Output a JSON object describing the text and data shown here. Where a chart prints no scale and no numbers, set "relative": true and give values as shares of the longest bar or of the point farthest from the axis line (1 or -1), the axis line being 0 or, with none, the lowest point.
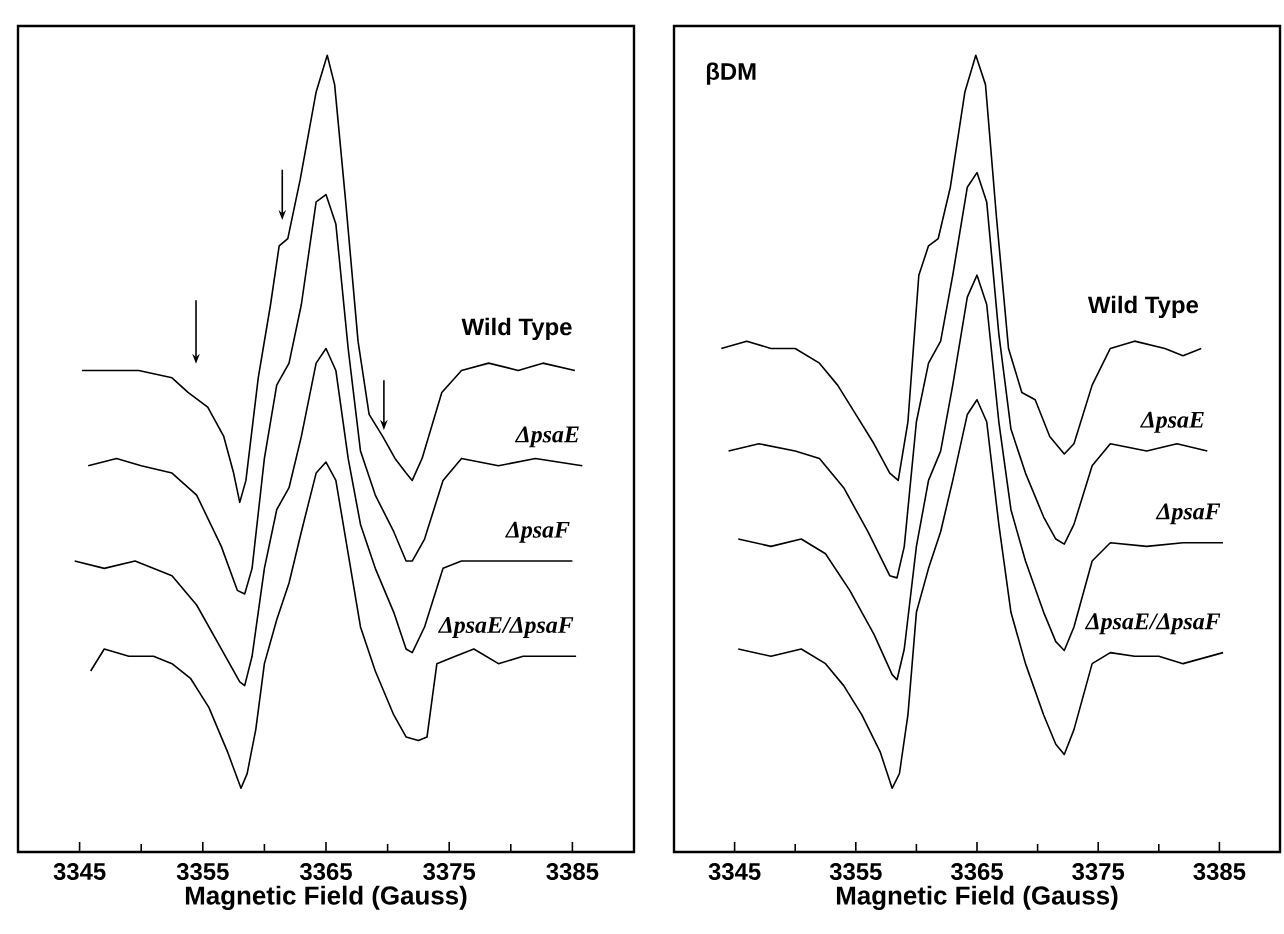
{
  "chart_data": [
    {
      "type": "line",
      "xlabel": "Magnetic Field (Gauss)",
      "xlim": [
        3340,
        3390
      ],
      "xticks": [
        3345,
        3355,
        3365,
        3375,
        3385
      ],
      "relative": true,
      "legend": false,
      "grid": false,
      "series": [
        {
          "name": "Wild Type",
          "color": "#000000",
          "x": [
            3345.2,
            3347.3,
            3349.8,
            3352.5,
            3353.8,
            3355.4,
            3356.7,
            3357.5,
            3358.0,
            3358.5,
            3359.5,
            3360.5,
            3361.2,
            3361.9,
            3362.9,
            3364.2,
            3365.1,
            3365.7,
            3366.6,
            3367.6,
            3368.5,
            3369.6,
            3370.6,
            3371.5,
            3372.0,
            3372.8,
            3374.4,
            3376.0,
            3378.2,
            3380.6,
            3382.6,
            3385.2
          ],
          "values": [
            0.57,
            0.57,
            0.57,
            0.56,
            0.54,
            0.52,
            0.48,
            0.43,
            0.39,
            0.42,
            0.56,
            0.66,
            0.74,
            0.75,
            0.83,
            0.95,
            1.0,
            0.96,
            0.8,
            0.61,
            0.51,
            0.48,
            0.45,
            0.43,
            0.42,
            0.45,
            0.54,
            0.57,
            0.58,
            0.57,
            0.58,
            0.57
          ]
        },
        {
          "name": "ΔpsaE",
          "color": "#000000",
          "x": [
            3345.7,
            3348,
            3350,
            3352.5,
            3354.5,
            3356.5,
            3357.8,
            3358.4,
            3359,
            3360,
            3361,
            3362,
            3363,
            3364.2,
            3365,
            3365.8,
            3366.8,
            3367.8,
            3369,
            3370.5,
            3371.5,
            3372,
            3373,
            3374.5,
            3376,
            3379,
            3382,
            3385.8
          ],
          "values": [
            0.44,
            0.45,
            0.44,
            0.43,
            0.4,
            0.33,
            0.27,
            0.265,
            0.3,
            0.45,
            0.55,
            0.58,
            0.66,
            0.8,
            0.81,
            0.77,
            0.6,
            0.46,
            0.4,
            0.35,
            0.31,
            0.31,
            0.34,
            0.42,
            0.45,
            0.44,
            0.45,
            0.44
          ]
        },
        {
          "name": "ΔpsaF",
          "color": "#000000",
          "x": [
            3344.6,
            3347,
            3349.5,
            3352.5,
            3354.5,
            3356.5,
            3358,
            3358.4,
            3359,
            3360,
            3361,
            3362,
            3363,
            3364.2,
            3365,
            3365.8,
            3366.8,
            3367.8,
            3369,
            3370.5,
            3371.5,
            3372,
            3373,
            3374.5,
            3376,
            3379,
            3382,
            3385
          ],
          "values": [
            0.31,
            0.3,
            0.31,
            0.29,
            0.25,
            0.19,
            0.145,
            0.14,
            0.18,
            0.3,
            0.38,
            0.41,
            0.48,
            0.58,
            0.6,
            0.57,
            0.45,
            0.36,
            0.3,
            0.24,
            0.19,
            0.185,
            0.22,
            0.3,
            0.31,
            0.31,
            0.31,
            0.31
          ]
        },
        {
          "name": "ΔpsaE/ΔpsaF",
          "color": "#000000",
          "x": [
            3345.9,
            3347,
            3349,
            3351,
            3352.5,
            3354,
            3355.5,
            3357,
            3358.1,
            3358.6,
            3359.3,
            3360,
            3361,
            3362,
            3363,
            3364.2,
            3365,
            3365.8,
            3366.8,
            3367.8,
            3369,
            3370.5,
            3371.5,
            3372.5,
            3373.2,
            3374,
            3375.5,
            3377,
            3379,
            3381,
            3383,
            3385.3
          ],
          "values": [
            0.16,
            0.19,
            0.18,
            0.18,
            0.17,
            0.15,
            0.11,
            0.05,
            0.0,
            0.02,
            0.08,
            0.17,
            0.23,
            0.28,
            0.35,
            0.43,
            0.445,
            0.42,
            0.32,
            0.22,
            0.16,
            0.1,
            0.07,
            0.065,
            0.07,
            0.17,
            0.18,
            0.19,
            0.17,
            0.18,
            0.18,
            0.18
          ]
        }
      ]
    },
    {
      "type": "line",
      "title": "βDM",
      "xlabel": "Magnetic Field (Gauss)",
      "xlim": [
        3340,
        3390
      ],
      "xticks": [
        3345,
        3355,
        3365,
        3375,
        3385
      ],
      "relative": true,
      "legend": false,
      "grid": false,
      "series": [
        {
          "name": "Wild Type",
          "color": "#000000",
          "x": [
            3343.9,
            3346,
            3348,
            3350,
            3352,
            3353.5,
            3355,
            3356.5,
            3357.8,
            3358.5,
            3359.3,
            3360.2,
            3361,
            3361.8,
            3362.8,
            3364,
            3364.9,
            3365.7,
            3366.6,
            3367.6,
            3368.7,
            3369.8,
            3371,
            3372.2,
            3373,
            3374.5,
            3376,
            3378,
            3380.5,
            3382,
            3383.5
          ],
          "values": [
            0.6,
            0.61,
            0.6,
            0.6,
            0.58,
            0.55,
            0.51,
            0.47,
            0.43,
            0.42,
            0.5,
            0.7,
            0.74,
            0.75,
            0.82,
            0.95,
            1.0,
            0.96,
            0.78,
            0.6,
            0.54,
            0.53,
            0.48,
            0.456,
            0.47,
            0.55,
            0.6,
            0.61,
            0.6,
            0.59,
            0.6
          ]
        },
        {
          "name": "ΔpsaE",
          "color": "#000000",
          "x": [
            3344.5,
            3347,
            3350,
            3352,
            3354,
            3356,
            3357.8,
            3358.4,
            3359,
            3360,
            3361,
            3362,
            3363,
            3364.2,
            3365,
            3365.8,
            3366.8,
            3367.8,
            3369,
            3370.5,
            3371.5,
            3372.2,
            3373,
            3374.5,
            3376,
            3379,
            3381.5,
            3384
          ],
          "values": [
            0.46,
            0.47,
            0.46,
            0.45,
            0.41,
            0.35,
            0.29,
            0.287,
            0.33,
            0.5,
            0.58,
            0.61,
            0.7,
            0.82,
            0.84,
            0.8,
            0.62,
            0.49,
            0.43,
            0.37,
            0.34,
            0.333,
            0.36,
            0.44,
            0.47,
            0.46,
            0.47,
            0.46
          ]
        },
        {
          "name": "ΔpsaF",
          "color": "#000000",
          "x": [
            3345.3,
            3348,
            3350.5,
            3352.5,
            3354.5,
            3356.5,
            3358,
            3358.4,
            3359,
            3360,
            3361,
            3362,
            3363,
            3364.2,
            3365,
            3365.8,
            3366.8,
            3367.8,
            3369,
            3370.5,
            3371.5,
            3372.2,
            3373,
            3374.5,
            3376,
            3379,
            3382,
            3385.3
          ],
          "values": [
            0.34,
            0.33,
            0.34,
            0.32,
            0.27,
            0.21,
            0.155,
            0.148,
            0.19,
            0.33,
            0.42,
            0.46,
            0.55,
            0.67,
            0.7,
            0.66,
            0.5,
            0.38,
            0.31,
            0.24,
            0.2,
            0.188,
            0.22,
            0.31,
            0.335,
            0.33,
            0.335,
            0.335
          ]
        },
        {
          "name": "ΔpsaE/ΔpsaF",
          "color": "#000000",
          "x": [
            3345.3,
            3348,
            3350.5,
            3352.5,
            3354,
            3355.5,
            3357,
            3358,
            3358.6,
            3359.3,
            3360,
            3361,
            3362,
            3363,
            3364.2,
            3365,
            3365.8,
            3366.8,
            3367.8,
            3369,
            3370.5,
            3371.5,
            3372.2,
            3373,
            3374.5,
            3376,
            3378,
            3380,
            3382,
            3385.3
          ],
          "values": [
            0.19,
            0.18,
            0.19,
            0.17,
            0.14,
            0.1,
            0.05,
            0.0,
            0.02,
            0.1,
            0.24,
            0.3,
            0.35,
            0.42,
            0.51,
            0.53,
            0.5,
            0.36,
            0.24,
            0.17,
            0.1,
            0.06,
            0.046,
            0.08,
            0.17,
            0.185,
            0.18,
            0.18,
            0.17,
            0.185
          ]
        }
      ]
    }
  ]
}
